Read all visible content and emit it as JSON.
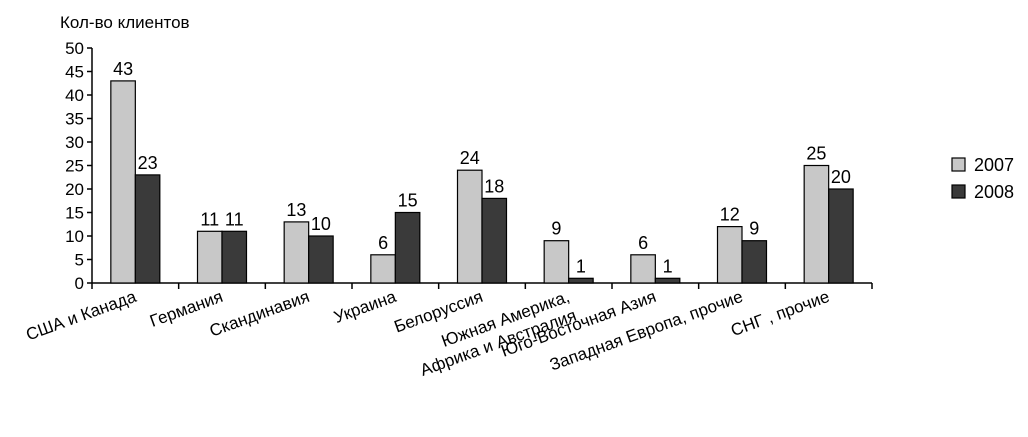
{
  "chart_data": {
    "type": "bar",
    "ylabel": "Кол-во клиентов",
    "xlabel": "",
    "ylim": [
      0,
      50
    ],
    "yticks": [
      0,
      5,
      10,
      15,
      20,
      25,
      30,
      35,
      40,
      45,
      50
    ],
    "grid": false,
    "legend_position": "right",
    "categories": [
      [
        "США и Канада"
      ],
      [
        "Германия"
      ],
      [
        "Скандинавия"
      ],
      [
        "Украина"
      ],
      [
        "Белоруссия"
      ],
      [
        "Южная Америка,",
        "Африка и Австралия"
      ],
      [
        "Юго-Восточная Азия"
      ],
      [
        "Западная Европа, прочие"
      ],
      [
        "СНГ , прочие"
      ]
    ],
    "series": [
      {
        "name": "2007",
        "color": "#c8c8c8",
        "values": [
          43,
          11,
          13,
          6,
          24,
          9,
          6,
          12,
          25
        ]
      },
      {
        "name": "2008",
        "color": "#3a3a3a",
        "values": [
          23,
          11,
          10,
          15,
          18,
          1,
          1,
          9,
          20
        ]
      }
    ]
  }
}
